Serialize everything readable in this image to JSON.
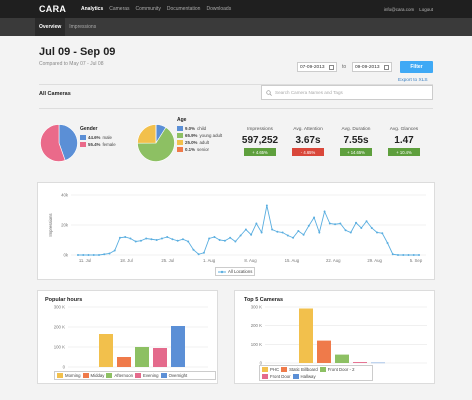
{
  "nav": {
    "brand": "CARA",
    "items": [
      {
        "label": "Analytics",
        "active": true
      },
      {
        "label": "Cameras",
        "active": false
      },
      {
        "label": "Community",
        "active": false
      },
      {
        "label": "Documentation",
        "active": false
      },
      {
        "label": "Downloads",
        "active": false
      }
    ],
    "user_email": "info@cara.com",
    "logout": "Logout"
  },
  "subnav": {
    "items": [
      {
        "label": "Overview",
        "active": true
      },
      {
        "label": "Impressions",
        "active": false
      }
    ]
  },
  "header": {
    "title": "Jul 09 - Sep 09",
    "subtitle": "Compared to May 07 - Jul 08",
    "date_from": "07-09-2013",
    "date_to_word": "to",
    "date_to": "09-09-2013",
    "filter_label": "Filter",
    "export_label": "Export to XLS"
  },
  "filters": {
    "section_label": "All Cameras",
    "search_placeholder": "Search Camera Names and Tags"
  },
  "gender": {
    "title": "Gender",
    "entries": [
      {
        "pct": "44.6%",
        "label": "male",
        "value": 44.6,
        "color": "#5b8fd6"
      },
      {
        "pct": "55.4%",
        "label": "female",
        "value": 55.4,
        "color": "#ea6a8a"
      }
    ]
  },
  "age": {
    "title": "Age",
    "entries": [
      {
        "pct": "9.0%",
        "label": "child",
        "value": 9.0,
        "color": "#5b8fd6"
      },
      {
        "pct": "65.9%",
        "label": "young adult",
        "value": 65.9,
        "color": "#8dc063"
      },
      {
        "pct": "25.0%",
        "label": "adult",
        "value": 25.0,
        "color": "#f2c04c"
      },
      {
        "pct": "0.1%",
        "label": "senior",
        "value": 0.1,
        "color": "#ef7a4a"
      }
    ]
  },
  "metrics": [
    {
      "label": "Impressions",
      "value": "597,252",
      "change": "+ 4.65%",
      "color": "#5e9f3d"
    },
    {
      "label": "Avg. Attention",
      "value": "3.67s",
      "change": "- 4.65%",
      "color": "#d9473a"
    },
    {
      "label": "Avg. Duration",
      "value": "7.55s",
      "change": "+ 14.65%",
      "color": "#5e9f3d"
    },
    {
      "label": "Avg. Glances",
      "value": "1.47",
      "change": "+ 10.4%",
      "color": "#5e9f3d"
    }
  ],
  "chart_data": [
    {
      "type": "line",
      "title": "",
      "xlabel": "",
      "ylabel": "Impressions",
      "y_tick_labels": [
        "0k",
        "20k",
        "40k"
      ],
      "ylim": [
        0,
        40000
      ],
      "x_tick_labels": [
        "11. Jul",
        "18. Jul",
        "25. Jul",
        "1. Aug",
        "8. Aug",
        "15. Aug",
        "22. Aug",
        "29. Aug",
        "5. Sep"
      ],
      "series": [
        {
          "name": "All Locations",
          "color": "#5aaee0",
          "values": [
            0,
            0,
            0,
            0,
            0,
            500,
            1000,
            3000,
            11500,
            12000,
            11000,
            9000,
            9500,
            11000,
            10500,
            10000,
            11000,
            12000,
            10500,
            9500,
            10500,
            9000,
            3500,
            500,
            1500,
            11000,
            12000,
            10000,
            9500,
            11500,
            9000,
            13000,
            17000,
            13500,
            21000,
            15000,
            33000,
            17000,
            15500,
            15000,
            13000,
            11500,
            16000,
            13500,
            19500,
            25000,
            15000,
            29000,
            21000,
            20500,
            21000,
            16500,
            15000,
            21500,
            18000,
            22500,
            18000,
            15000,
            14500,
            8000,
            500,
            0,
            0,
            0,
            0,
            0
          ]
        }
      ],
      "legend": "bottom-center",
      "grid": true
    },
    {
      "type": "bar",
      "title": "Popular hours",
      "y_tick_labels": [
        "0",
        "100 K",
        "200 K",
        "300 K"
      ],
      "ylim": [
        0,
        300
      ],
      "categories": [
        "Morning",
        "Midday",
        "Afternoon",
        "Evening",
        "Overnight"
      ],
      "values": [
        165,
        50,
        100,
        95,
        205
      ],
      "colors": [
        "#f2c04c",
        "#ef7a4a",
        "#8dc063",
        "#e46a8c",
        "#5b8fd6"
      ],
      "legend": "bottom"
    },
    {
      "type": "bar",
      "title": "Top 5 Cameras",
      "y_tick_labels": [
        "0",
        "100 K",
        "200 K",
        "300 K"
      ],
      "ylim": [
        0,
        300
      ],
      "categories": [
        "PHC",
        "Static Billboard",
        "Front Door - 2",
        "Front Door",
        "Hallway"
      ],
      "values": [
        292,
        120,
        45,
        5,
        2
      ],
      "colors": [
        "#f2c04c",
        "#ef7a4a",
        "#8dc063",
        "#e46a8c",
        "#5b8fd6"
      ],
      "legend": "bottom"
    }
  ]
}
